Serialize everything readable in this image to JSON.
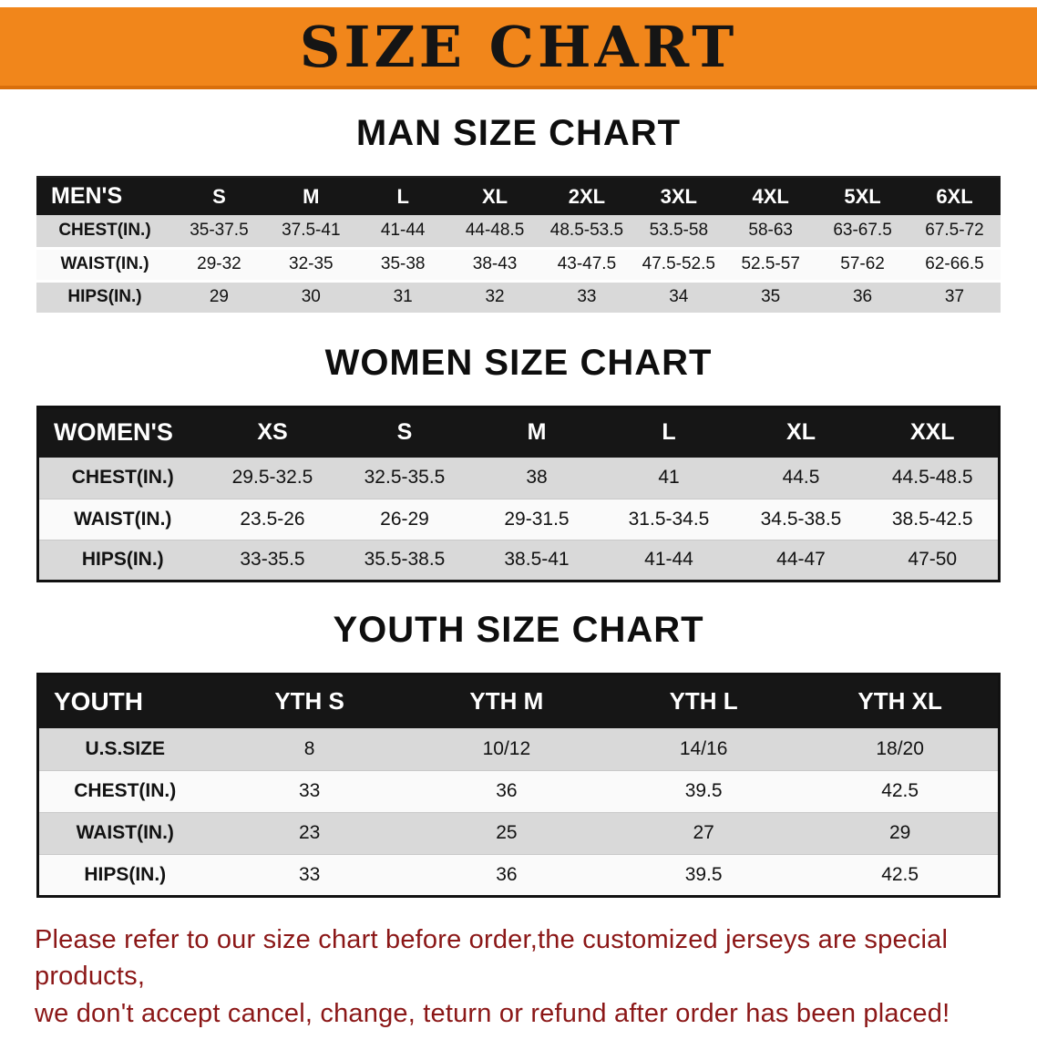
{
  "banner": {
    "title": "SIZE CHART",
    "bg_color": "#f1861b",
    "text_color": "#151515"
  },
  "sections": [
    {
      "key": "mens",
      "title": "MAN SIZE CHART",
      "corner_label": "MEN'S",
      "columns": [
        "S",
        "M",
        "L",
        "XL",
        "2XL",
        "3XL",
        "4XL",
        "5XL",
        "6XL"
      ],
      "rows": [
        {
          "label": "CHEST(IN.)",
          "values": [
            "35-37.5",
            "37.5-41",
            "41-44",
            "44-48.5",
            "48.5-53.5",
            "53.5-58",
            "58-63",
            "63-67.5",
            "67.5-72"
          ]
        },
        {
          "label": "WAIST(IN.)",
          "values": [
            "29-32",
            "32-35",
            "35-38",
            "38-43",
            "43-47.5",
            "47.5-52.5",
            "52.5-57",
            "57-62",
            "62-66.5"
          ]
        },
        {
          "label": "HIPS(IN.)",
          "values": [
            "29",
            "30",
            "31",
            "32",
            "33",
            "34",
            "35",
            "36",
            "37"
          ]
        }
      ]
    },
    {
      "key": "womens",
      "title": "WOMEN SIZE CHART",
      "corner_label": "WOMEN'S",
      "columns": [
        "XS",
        "S",
        "M",
        "L",
        "XL",
        "XXL"
      ],
      "rows": [
        {
          "label": "CHEST(IN.)",
          "values": [
            "29.5-32.5",
            "32.5-35.5",
            "38",
            "41",
            "44.5",
            "44.5-48.5"
          ]
        },
        {
          "label": "WAIST(IN.)",
          "values": [
            "23.5-26",
            "26-29",
            "29-31.5",
            "31.5-34.5",
            "34.5-38.5",
            "38.5-42.5"
          ]
        },
        {
          "label": "HIPS(IN.)",
          "values": [
            "33-35.5",
            "35.5-38.5",
            "38.5-41",
            "41-44",
            "44-47",
            "47-50"
          ]
        }
      ]
    },
    {
      "key": "youth",
      "title": "YOUTH SIZE CHART",
      "corner_label": "YOUTH",
      "columns": [
        "YTH S",
        "YTH M",
        "YTH L",
        "YTH XL"
      ],
      "rows": [
        {
          "label": "U.S.SIZE",
          "values": [
            "8",
            "10/12",
            "14/16",
            "18/20"
          ]
        },
        {
          "label": "CHEST(IN.)",
          "values": [
            "33",
            "36",
            "39.5",
            "42.5"
          ]
        },
        {
          "label": "WAIST(IN.)",
          "values": [
            "23",
            "25",
            "27",
            "29"
          ]
        },
        {
          "label": "HIPS(IN.)",
          "values": [
            "33",
            "36",
            "39.5",
            "42.5"
          ]
        }
      ]
    }
  ],
  "footer": {
    "text_color": "#8b1717",
    "lines": [
      "Please refer to our size chart before order,the customized jerseys are special products,",
      "we don't accept cancel, change, teturn or refund after order has been placed!"
    ]
  }
}
